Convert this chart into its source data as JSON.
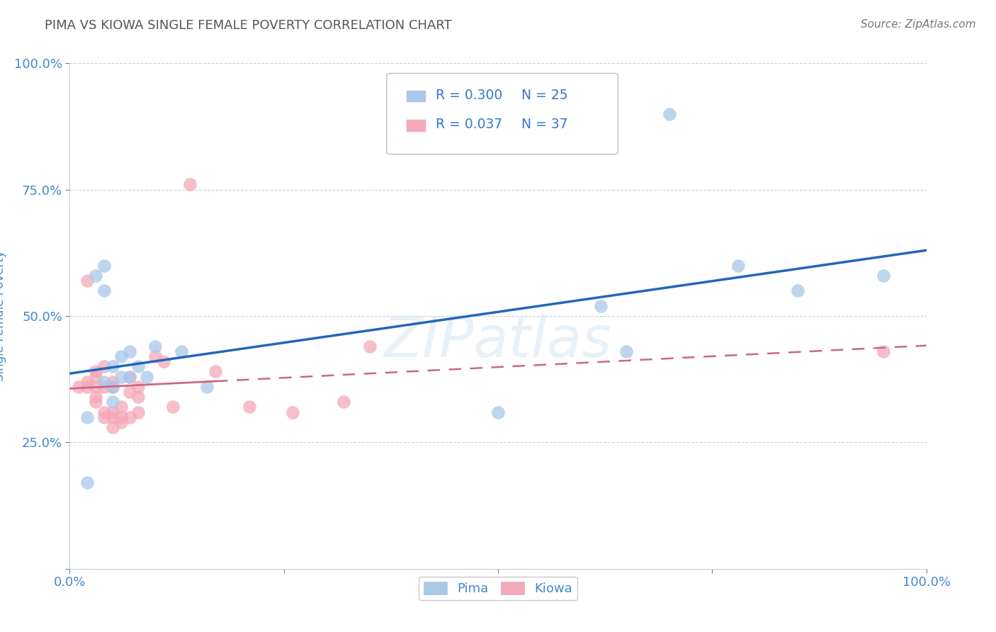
{
  "title": "PIMA VS KIOWA SINGLE FEMALE POVERTY CORRELATION CHART",
  "source": "Source: ZipAtlas.com",
  "ylabel": "Single Female Poverty",
  "xlim": [
    0.0,
    1.0
  ],
  "ylim": [
    0.0,
    1.0
  ],
  "xticklabels": [
    "0.0%",
    "",
    "",
    "",
    "100.0%"
  ],
  "yticklabels": [
    "",
    "25.0%",
    "50.0%",
    "75.0%",
    "100.0%"
  ],
  "watermark": "ZIPatlas",
  "pima_color": "#A8C8E8",
  "kiowa_color": "#F4A8B8",
  "pima_line_color": "#2266BB",
  "kiowa_line_color": "#CC6688",
  "legend_r_pima": "R = 0.300",
  "legend_n_pima": "N = 25",
  "legend_r_kiowa": "R = 0.037",
  "legend_n_kiowa": "N = 37",
  "pima_x": [
    0.02,
    0.02,
    0.03,
    0.04,
    0.04,
    0.04,
    0.05,
    0.05,
    0.05,
    0.06,
    0.06,
    0.07,
    0.07,
    0.08,
    0.09,
    0.1,
    0.13,
    0.16,
    0.5,
    0.62,
    0.65,
    0.7,
    0.78,
    0.85,
    0.95
  ],
  "pima_y": [
    0.17,
    0.3,
    0.58,
    0.55,
    0.37,
    0.6,
    0.33,
    0.36,
    0.4,
    0.38,
    0.42,
    0.43,
    0.38,
    0.4,
    0.38,
    0.44,
    0.43,
    0.36,
    0.31,
    0.52,
    0.43,
    0.9,
    0.6,
    0.55,
    0.58
  ],
  "kiowa_x": [
    0.01,
    0.02,
    0.02,
    0.02,
    0.03,
    0.03,
    0.03,
    0.03,
    0.03,
    0.04,
    0.04,
    0.04,
    0.04,
    0.05,
    0.05,
    0.05,
    0.05,
    0.05,
    0.06,
    0.06,
    0.06,
    0.07,
    0.07,
    0.07,
    0.08,
    0.08,
    0.08,
    0.1,
    0.11,
    0.12,
    0.14,
    0.17,
    0.21,
    0.26,
    0.32,
    0.35,
    0.95
  ],
  "kiowa_y": [
    0.36,
    0.36,
    0.37,
    0.57,
    0.33,
    0.34,
    0.36,
    0.38,
    0.39,
    0.3,
    0.31,
    0.36,
    0.4,
    0.28,
    0.3,
    0.31,
    0.36,
    0.37,
    0.29,
    0.3,
    0.32,
    0.3,
    0.35,
    0.38,
    0.31,
    0.34,
    0.36,
    0.42,
    0.41,
    0.32,
    0.76,
    0.39,
    0.32,
    0.31,
    0.33,
    0.44,
    0.43
  ],
  "grid_color": "#CCCCCC",
  "background_color": "#FFFFFF",
  "title_color": "#555555",
  "axis_label_color": "#4488CC",
  "tick_label_color": "#4488CC",
  "legend_text_color": "#3377CC"
}
